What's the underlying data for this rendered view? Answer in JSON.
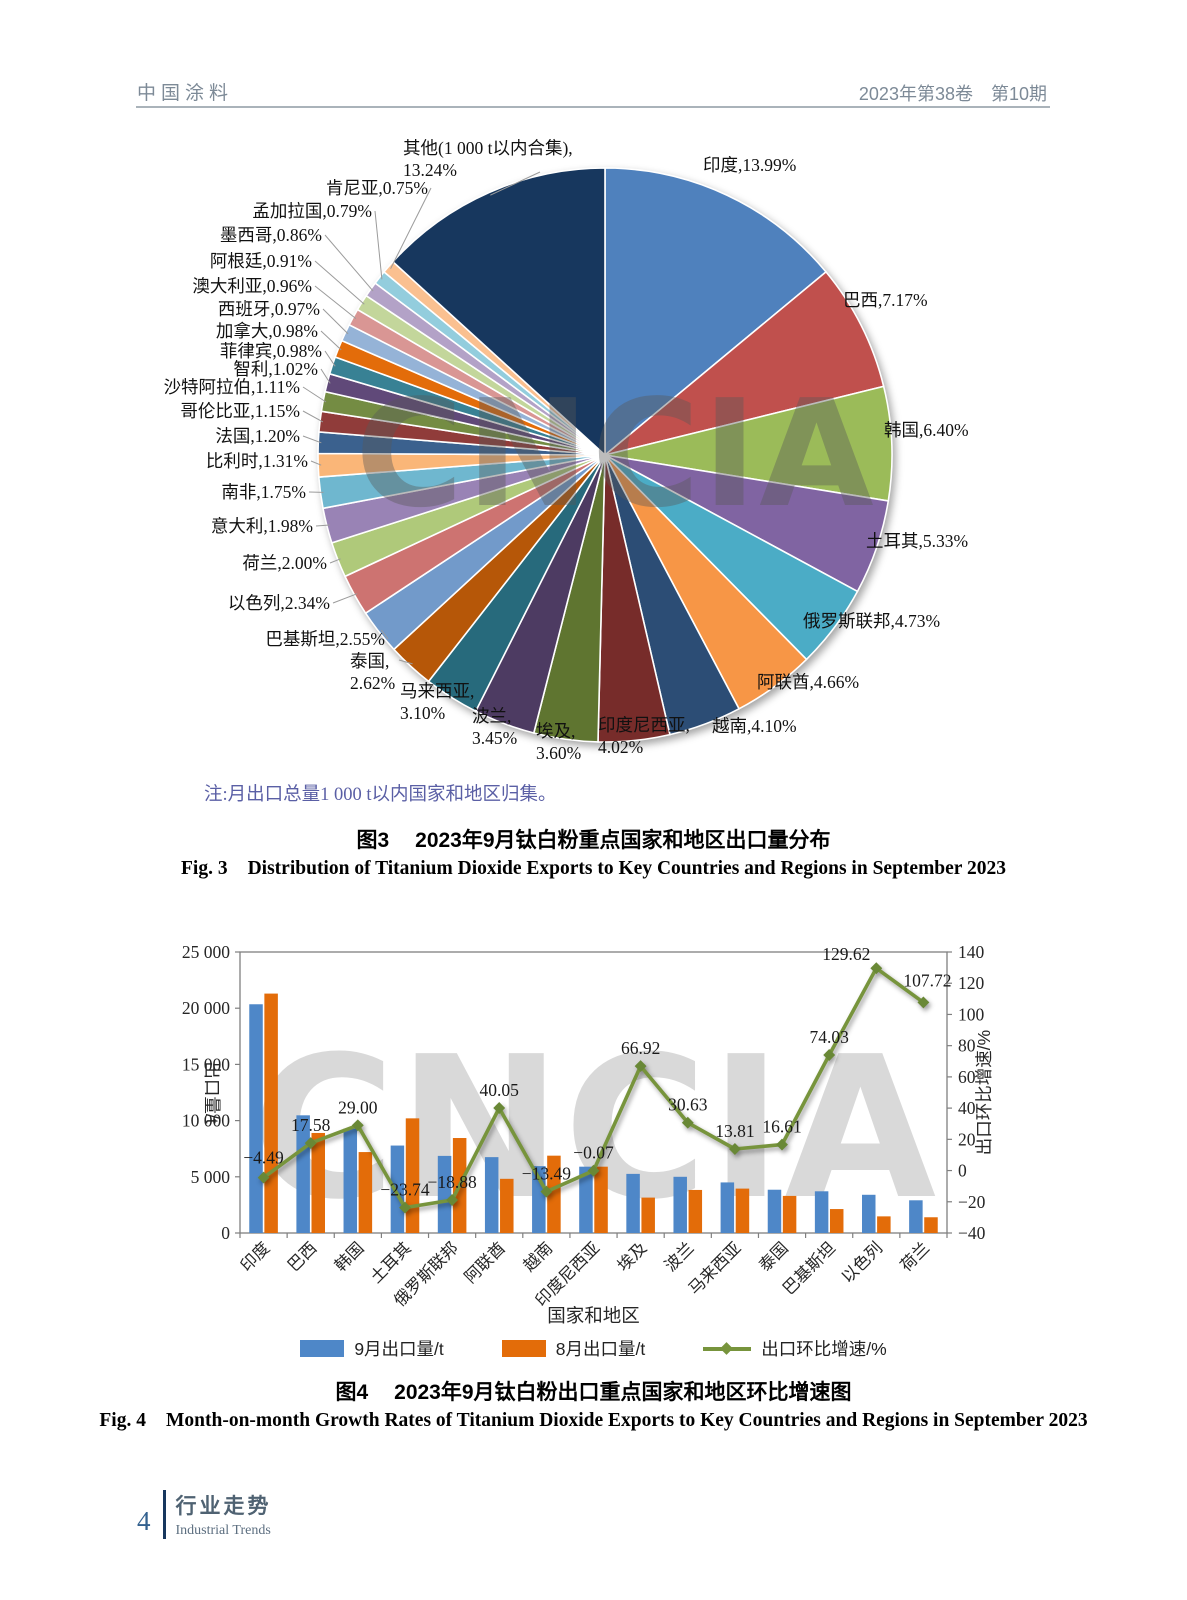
{
  "header": {
    "journal_name": "中国涂料",
    "issue_info": "2023年第38卷　第10期"
  },
  "watermark_text": "CNCIA",
  "fig3": {
    "note": "注:月出口总量1 000 t以内国家和地区归集。",
    "caption_zh_label": "图3",
    "caption_zh_text": "2023年9月钛白粉重点国家和地区出口量分布",
    "caption_en_label": "Fig. 3",
    "caption_en_text": "Distribution of Titanium Dioxide Exports to Key Countries and Regions in September 2023"
  },
  "fig4": {
    "caption_zh_label": "图4",
    "caption_zh_text": "2023年9月钛白粉出口重点国家和地区环比增速图",
    "caption_en_label": "Fig. 4",
    "caption_en_text": "Month-on-month Growth Rates of Titanium Dioxide Exports to Key Countries and Regions in September  2023",
    "legend": [
      {
        "label": "9月出口量/t",
        "color": "#4e87c8",
        "type": "bar"
      },
      {
        "label": "8月出口量/t",
        "color": "#e36c09",
        "type": "bar"
      },
      {
        "label": "出口环比增速/%",
        "color": "#77943c",
        "type": "line"
      }
    ]
  },
  "chart_data": [
    {
      "type": "pie",
      "title": "2023年9月钛白粉重点国家和地区出口量分布",
      "unit": "%",
      "slices": [
        {
          "label": "印度",
          "value": 13.99,
          "color": "#4f81bd"
        },
        {
          "label": "巴西",
          "value": 7.17,
          "color": "#c0504d"
        },
        {
          "label": "韩国",
          "value": 6.4,
          "color": "#9bbb59"
        },
        {
          "label": "土耳其",
          "value": 5.33,
          "color": "#8064a2"
        },
        {
          "label": "俄罗斯联邦",
          "value": 4.73,
          "color": "#4bacc6"
        },
        {
          "label": "阿联酋",
          "value": 4.66,
          "color": "#f79646"
        },
        {
          "label": "越南",
          "value": 4.1,
          "color": "#2c4d75"
        },
        {
          "label": "印度尼西亚",
          "value": 4.02,
          "color": "#772c2a"
        },
        {
          "label": "埃及",
          "value": 3.6,
          "color": "#5f7530"
        },
        {
          "label": "波兰",
          "value": 3.45,
          "color": "#4d3b62"
        },
        {
          "label": "马来西亚",
          "value": 3.1,
          "color": "#276a7c"
        },
        {
          "label": "泰国",
          "value": 2.62,
          "color": "#b65708"
        },
        {
          "label": "巴基斯坦",
          "value": 2.55,
          "color": "#729aca"
        },
        {
          "label": "以色列",
          "value": 2.34,
          "color": "#cd7371"
        },
        {
          "label": "荷兰",
          "value": 2.0,
          "color": "#afc97a"
        },
        {
          "label": "意大利",
          "value": 1.98,
          "color": "#9983b5"
        },
        {
          "label": "南非",
          "value": 1.75,
          "color": "#6fb7cf"
        },
        {
          "label": "比利时",
          "value": 1.31,
          "color": "#fab678"
        },
        {
          "label": "法国",
          "value": 1.2,
          "color": "#3b618e"
        },
        {
          "label": "哥伦比亚",
          "value": 1.15,
          "color": "#903c3a"
        },
        {
          "label": "沙特阿拉伯",
          "value": 1.11,
          "color": "#748c43"
        },
        {
          "label": "智利",
          "value": 1.02,
          "color": "#604979"
        },
        {
          "label": "菲律宾",
          "value": 0.98,
          "color": "#388194"
        },
        {
          "label": "加拿大",
          "value": 0.98,
          "color": "#e36c0a"
        },
        {
          "label": "西班牙",
          "value": 0.97,
          "color": "#95b3d7"
        },
        {
          "label": "澳大利亚",
          "value": 0.96,
          "color": "#d99694"
        },
        {
          "label": "阿根廷",
          "value": 0.91,
          "color": "#c3d69b"
        },
        {
          "label": "墨西哥",
          "value": 0.86,
          "color": "#b3a2c7"
        },
        {
          "label": "孟加拉国",
          "value": 0.79,
          "color": "#93cddd"
        },
        {
          "label": "肯尼亚",
          "value": 0.75,
          "color": "#fac090"
        },
        {
          "label": "其他(1 000 t以内合集)",
          "value": 13.24,
          "color": "#17375e"
        }
      ]
    },
    {
      "type": "bar",
      "title": "2023年9月钛白粉出口重点国家和地区环比增速图",
      "categories": [
        "印度",
        "巴西",
        "韩国",
        "土耳其",
        "俄罗斯联邦",
        "阿联酋",
        "越南",
        "印度尼西亚",
        "埃及",
        "波兰",
        "马来西亚",
        "泰国",
        "巴基斯坦",
        "以色列",
        "荷兰"
      ],
      "series": [
        {
          "name": "9月出口量/t",
          "color": "#4e87c8",
          "values": [
            20350,
            10470,
            9290,
            7780,
            6860,
            6750,
            5950,
            5900,
            5260,
            5000,
            4500,
            3850,
            3710,
            3400,
            2910
          ]
        },
        {
          "name": "8月出口量/t",
          "color": "#e36c09",
          "values": [
            21300,
            8900,
            7200,
            10200,
            8450,
            4820,
            6880,
            5900,
            3150,
            3830,
            3950,
            3300,
            2130,
            1480,
            1400
          ]
        }
      ],
      "line_series": {
        "name": "出口环比增速/%",
        "color": "#77943c",
        "marker_color": "#698836",
        "values": [
          -4.49,
          17.58,
          29.0,
          -23.74,
          -18.88,
          40.05,
          -13.49,
          -0.07,
          66.92,
          30.63,
          13.81,
          16.61,
          74.03,
          129.62,
          107.72
        ]
      },
      "xlabel": "国家和地区",
      "ylabel_left": "出口量/t",
      "ylabel_right": "出口环比增速/%",
      "left_axis": {
        "lim": [
          0,
          25000
        ],
        "ticks": [
          "0",
          "5 000",
          "10 000",
          "15 000",
          "20 000",
          "25 000"
        ]
      },
      "right_axis": {
        "lim": [
          -40,
          140
        ],
        "ticks": [
          "−40",
          "−20",
          "0",
          "20",
          "40",
          "60",
          "80",
          "100",
          "120",
          "140"
        ]
      }
    }
  ],
  "footer": {
    "page_number": "4",
    "column_zh": "行业走势",
    "column_en": "Industrial Trends"
  }
}
